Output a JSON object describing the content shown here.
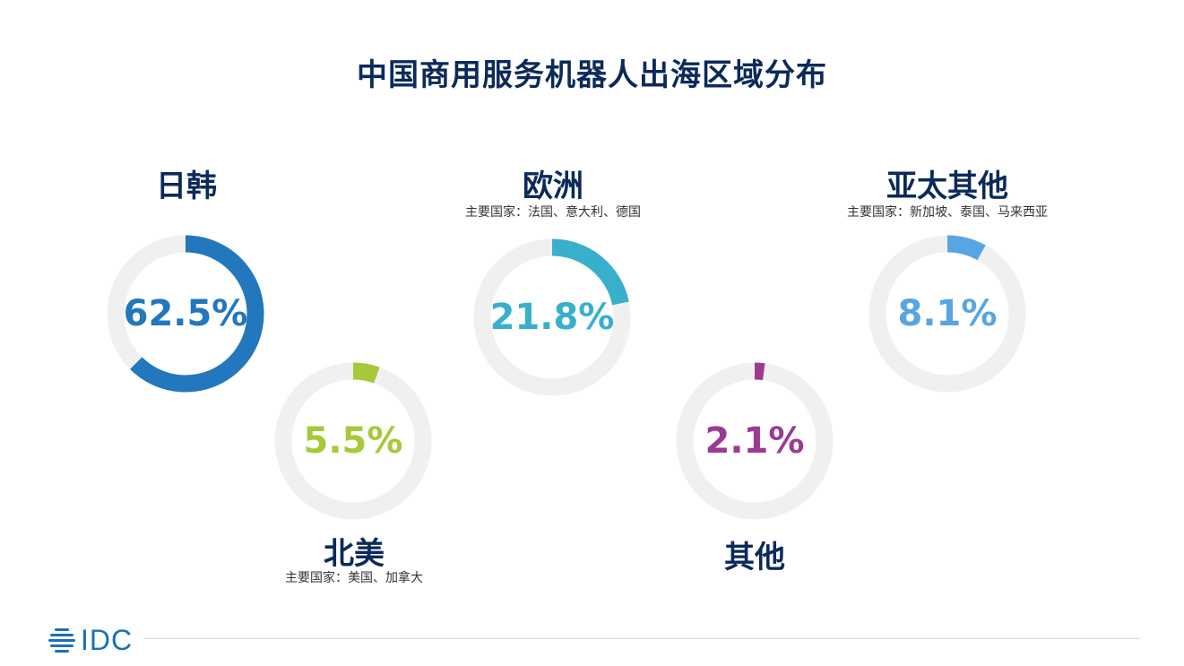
{
  "chart_data": {
    "type": "pie",
    "title": "中国商用服务机器人出海区域分布",
    "slices": [
      {
        "name": "日韩",
        "value": 62.5,
        "label": "62.5%",
        "note": "",
        "color": "#2277bd"
      },
      {
        "name": "欧洲",
        "value": 21.8,
        "label": "21.8%",
        "note": "主要国家：法国、意大利、德国",
        "color": "#38b0cc"
      },
      {
        "name": "亚太其他",
        "value": 8.1,
        "label": "8.1%",
        "note": "主要国家：新加坡、泰国、马来西亚",
        "color": "#57a6e3"
      },
      {
        "name": "北美",
        "value": 5.5,
        "label": "5.5%",
        "note": "主要国家：美国、加拿大",
        "color": "#a6c93a"
      },
      {
        "name": "其他",
        "value": 2.1,
        "label": "2.1%",
        "note": "",
        "color": "#9b3a93"
      }
    ]
  },
  "track_color": "#f0f0f0",
  "logo": {
    "text": "IDC",
    "color": "#1a6fb7",
    "icon": "idc-globe-icon"
  }
}
